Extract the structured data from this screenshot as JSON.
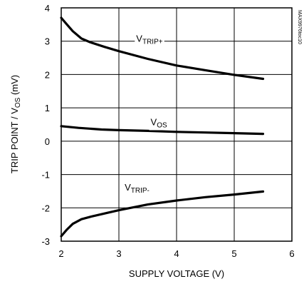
{
  "chart_data": {
    "type": "line",
    "xlabel": "SUPPLY VOLTAGE (V)",
    "ylabel": {
      "main": "TRIP POINT / V",
      "sub": "OS",
      "tail": " (mV)"
    },
    "xlim": [
      2,
      6
    ],
    "ylim": [
      -3,
      4
    ],
    "xticks": [
      "2",
      "3",
      "4",
      "5",
      "6"
    ],
    "yticks": [
      "-3",
      "-2",
      "-1",
      "0",
      "1",
      "2",
      "3",
      "4"
    ],
    "grid": true,
    "figure_code": "MAX9976toc10",
    "series": [
      {
        "name": "VTRIP+",
        "label": {
          "main": "V",
          "sub": "TRIP+"
        },
        "x": [
          2.0,
          2.1,
          2.2,
          2.35,
          2.5,
          2.75,
          3.0,
          3.5,
          4.0,
          4.5,
          5.0,
          5.5
        ],
        "y": [
          3.7,
          3.5,
          3.3,
          3.08,
          2.97,
          2.83,
          2.7,
          2.47,
          2.27,
          2.13,
          1.99,
          1.87
        ]
      },
      {
        "name": "VOS",
        "label": {
          "main": "V",
          "sub": "OS"
        },
        "x": [
          2.0,
          2.3,
          2.7,
          3.0,
          3.5,
          4.0,
          4.5,
          5.0,
          5.5
        ],
        "y": [
          0.45,
          0.4,
          0.35,
          0.33,
          0.31,
          0.28,
          0.26,
          0.24,
          0.22
        ]
      },
      {
        "name": "VTRIP-",
        "label": {
          "main": "V",
          "sub": "TRIP-"
        },
        "x": [
          2.0,
          2.1,
          2.2,
          2.35,
          2.5,
          2.75,
          3.0,
          3.5,
          4.0,
          4.5,
          5.0,
          5.5
        ],
        "y": [
          -2.85,
          -2.65,
          -2.48,
          -2.34,
          -2.27,
          -2.17,
          -2.07,
          -1.9,
          -1.78,
          -1.68,
          -1.6,
          -1.51
        ]
      }
    ]
  }
}
